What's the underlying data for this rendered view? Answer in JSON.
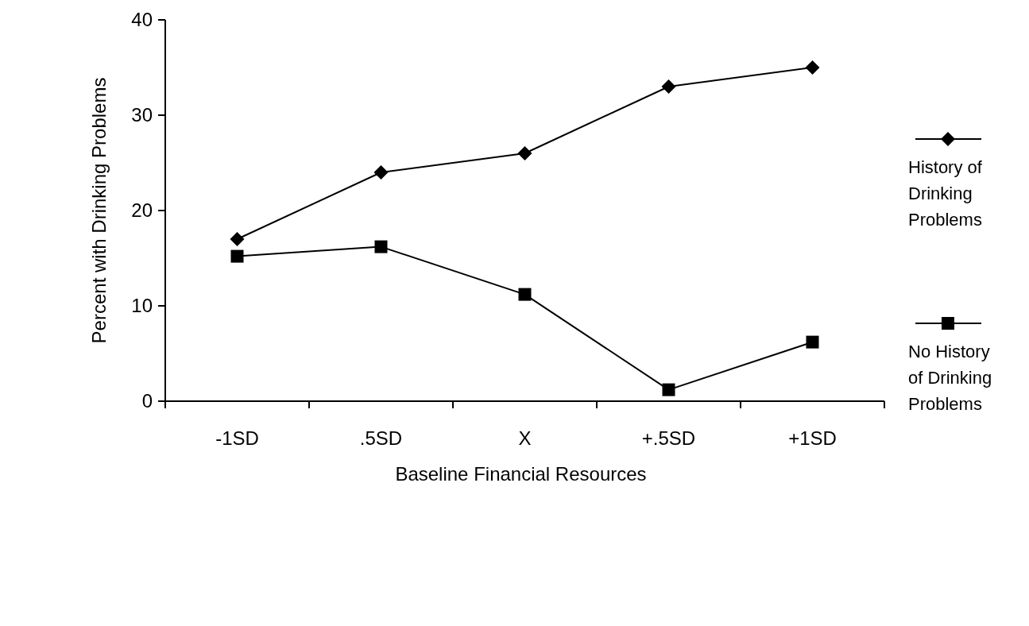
{
  "chart_data": {
    "type": "line",
    "xlabel": "Baseline Financial Resources",
    "ylabel": "Percent with Drinking Problems",
    "categories": [
      "-1SD",
      ".5SD",
      "X",
      "+.5SD",
      "+1SD"
    ],
    "series": [
      {
        "name": "History of Drinking Problems",
        "color": "#000000",
        "marker": "diamond",
        "values": [
          17,
          24,
          26,
          33,
          35
        ]
      },
      {
        "name": "No History of Drinking Problems",
        "color": "#000000",
        "marker": "square",
        "values": [
          15.2,
          16.2,
          11.2,
          1.2,
          6.2
        ]
      }
    ],
    "ylim": [
      0,
      40
    ],
    "yticks": [
      0,
      10,
      20,
      30,
      40
    ],
    "grid": false,
    "legend": "right",
    "line_style": "solid"
  }
}
